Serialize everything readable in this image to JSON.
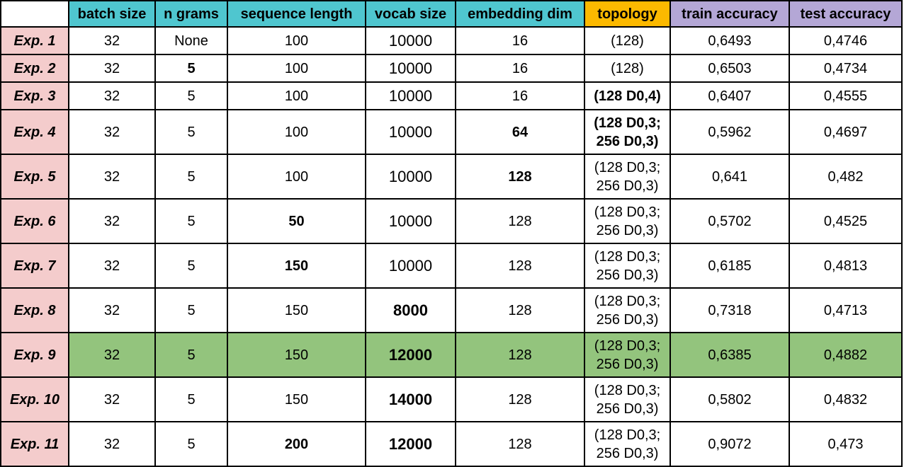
{
  "columns": [
    {
      "key": "batch_size",
      "label": "batch size",
      "style": "teal"
    },
    {
      "key": "n_grams",
      "label": "n grams",
      "style": "teal"
    },
    {
      "key": "sequence_length",
      "label": "sequence length",
      "style": "teal"
    },
    {
      "key": "vocab_size",
      "label": "vocab size",
      "style": "teal"
    },
    {
      "key": "embedding_dim",
      "label": "embedding dim",
      "style": "teal"
    },
    {
      "key": "topology",
      "label": "topology",
      "style": "orange"
    },
    {
      "key": "train_accuracy",
      "label": "train accuracy",
      "style": "purple"
    },
    {
      "key": "test_accuracy",
      "label": "test accuracy",
      "style": "purple"
    }
  ],
  "colors": {
    "header_teal": "#4fc6cf",
    "header_orange": "#fcb900",
    "header_purple": "#b4a7d6",
    "row_label_pink": "#f4cccc",
    "highlight_green": "#93c47d"
  },
  "rows": [
    {
      "label": "Exp. 1",
      "highlight": false,
      "bold": [],
      "cells": [
        "32",
        "None",
        "100",
        "10000",
        "16",
        [
          "(128)"
        ],
        "0,6493",
        "0,4746"
      ]
    },
    {
      "label": "Exp. 2",
      "highlight": false,
      "bold": [
        "n_grams"
      ],
      "cells": [
        "32",
        "5",
        "100",
        "10000",
        "16",
        [
          "(128)"
        ],
        "0,6503",
        "0,4734"
      ]
    },
    {
      "label": "Exp. 3",
      "highlight": false,
      "bold": [
        "topology"
      ],
      "cells": [
        "32",
        "5",
        "100",
        "10000",
        "16",
        [
          "(128 D0,4)"
        ],
        "0,6407",
        "0,4555"
      ]
    },
    {
      "label": "Exp. 4",
      "highlight": false,
      "bold": [
        "embedding_dim",
        "topology"
      ],
      "cells": [
        "32",
        "5",
        "100",
        "10000",
        "64",
        [
          "(128 D0,3;",
          "256 D0,3)"
        ],
        "0,5962",
        "0,4697"
      ]
    },
    {
      "label": "Exp. 5",
      "highlight": false,
      "bold": [
        "embedding_dim"
      ],
      "cells": [
        "32",
        "5",
        "100",
        "10000",
        "128",
        [
          "(128 D0,3;",
          "256 D0,3)"
        ],
        "0,641",
        "0,482"
      ]
    },
    {
      "label": "Exp. 6",
      "highlight": false,
      "bold": [
        "sequence_length"
      ],
      "cells": [
        "32",
        "5",
        "50",
        "10000",
        "128",
        [
          "(128 D0,3;",
          "256 D0,3)"
        ],
        "0,5702",
        "0,4525"
      ]
    },
    {
      "label": "Exp. 7",
      "highlight": false,
      "bold": [
        "sequence_length"
      ],
      "cells": [
        "32",
        "5",
        "150",
        "10000",
        "128",
        [
          "(128 D0,3;",
          "256 D0,3)"
        ],
        "0,6185",
        "0,4813"
      ]
    },
    {
      "label": "Exp. 8",
      "highlight": false,
      "bold": [
        "vocab_size"
      ],
      "cells": [
        "32",
        "5",
        "150",
        "8000",
        "128",
        [
          "(128 D0,3;",
          "256 D0,3)"
        ],
        "0,7318",
        "0,4713"
      ]
    },
    {
      "label": "Exp. 9",
      "highlight": true,
      "bold": [
        "vocab_size"
      ],
      "cells": [
        "32",
        "5",
        "150",
        "12000",
        "128",
        [
          "(128 D0,3;",
          "256 D0,3)"
        ],
        "0,6385",
        "0,4882"
      ]
    },
    {
      "label": "Exp. 10",
      "highlight": false,
      "bold": [
        "vocab_size"
      ],
      "cells": [
        "32",
        "5",
        "150",
        "14000",
        "128",
        [
          "(128 D0,3;",
          "256 D0,3)"
        ],
        "0,5802",
        "0,4832"
      ]
    },
    {
      "label": "Exp. 11",
      "highlight": false,
      "bold": [
        "sequence_length",
        "vocab_size"
      ],
      "cells": [
        "32",
        "5",
        "200",
        "12000",
        "128",
        [
          "(128 D0,3;",
          "256 D0,3)"
        ],
        "0,9072",
        "0,473"
      ]
    }
  ]
}
